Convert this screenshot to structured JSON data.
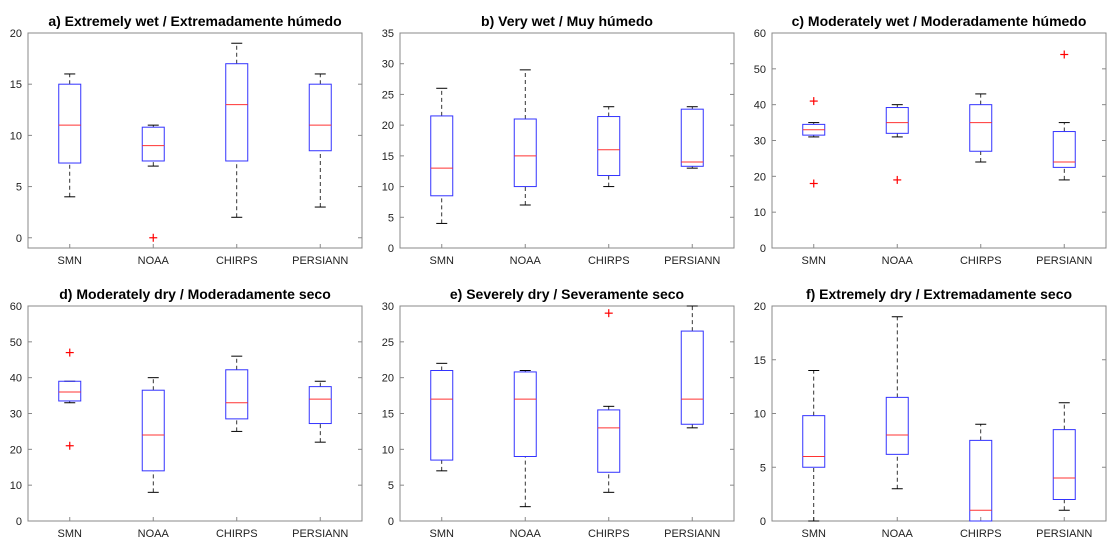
{
  "colors": {
    "box": "#3333ff",
    "median": "#ff3333",
    "whisker": "#000000",
    "outlier": "#ff0000",
    "axes": "#888888"
  },
  "chart_data": [
    {
      "type": "box",
      "title": "a) Extremely wet / Extremadamente húmedo",
      "categories": [
        "SMN",
        "NOAA",
        "CHIRPS",
        "PERSIANN"
      ],
      "ylim": [
        -1,
        20
      ],
      "yticks": [
        0,
        5,
        10,
        15,
        20
      ],
      "boxes": [
        {
          "whisker_low": 4,
          "q1": 7.3,
          "median": 11,
          "q3": 15,
          "whisker_high": 16,
          "outliers": []
        },
        {
          "whisker_low": 7,
          "q1": 7.5,
          "median": 9,
          "q3": 10.8,
          "whisker_high": 11,
          "outliers": [
            0
          ]
        },
        {
          "whisker_low": 2,
          "q1": 7.5,
          "median": 13,
          "q3": 17,
          "whisker_high": 19,
          "outliers": []
        },
        {
          "whisker_low": 3,
          "q1": 8.5,
          "median": 11,
          "q3": 15,
          "whisker_high": 16,
          "outliers": []
        }
      ]
    },
    {
      "type": "box",
      "title": "b) Very wet / Muy húmedo",
      "categories": [
        "SMN",
        "NOAA",
        "CHIRPS",
        "PERSIANN"
      ],
      "ylim": [
        0,
        35
      ],
      "yticks": [
        0,
        5,
        10,
        15,
        20,
        25,
        30,
        35
      ],
      "boxes": [
        {
          "whisker_low": 4,
          "q1": 8.5,
          "median": 13,
          "q3": 21.5,
          "whisker_high": 26,
          "outliers": []
        },
        {
          "whisker_low": 7,
          "q1": 10,
          "median": 15,
          "q3": 21,
          "whisker_high": 29,
          "outliers": []
        },
        {
          "whisker_low": 10,
          "q1": 11.8,
          "median": 16,
          "q3": 21.4,
          "whisker_high": 23,
          "outliers": []
        },
        {
          "whisker_low": 13,
          "q1": 13.3,
          "median": 14,
          "q3": 22.6,
          "whisker_high": 23,
          "outliers": []
        }
      ]
    },
    {
      "type": "box",
      "title": "c) Moderately wet / Moderadamente húmedo",
      "categories": [
        "SMN",
        "NOAA",
        "CHIRPS",
        "PERSIANN"
      ],
      "ylim": [
        0,
        60
      ],
      "yticks": [
        0,
        10,
        20,
        30,
        40,
        50,
        60
      ],
      "boxes": [
        {
          "whisker_low": 31,
          "q1": 31.5,
          "median": 33,
          "q3": 34.5,
          "whisker_high": 35,
          "outliers": [
            18,
            41
          ]
        },
        {
          "whisker_low": 31,
          "q1": 32,
          "median": 35,
          "q3": 39.2,
          "whisker_high": 40,
          "outliers": [
            19
          ]
        },
        {
          "whisker_low": 24,
          "q1": 27,
          "median": 35,
          "q3": 40,
          "whisker_high": 43,
          "outliers": []
        },
        {
          "whisker_low": 19,
          "q1": 22.5,
          "median": 24,
          "q3": 32.5,
          "whisker_high": 35,
          "outliers": [
            54
          ]
        }
      ]
    },
    {
      "type": "box",
      "title": "d) Moderately dry / Moderadamente seco",
      "categories": [
        "SMN",
        "NOAA",
        "CHIRPS",
        "PERSIANN"
      ],
      "ylim": [
        0,
        60
      ],
      "yticks": [
        0,
        10,
        20,
        30,
        40,
        50,
        60
      ],
      "boxes": [
        {
          "whisker_low": 33,
          "q1": 33.5,
          "median": 36,
          "q3": 39,
          "whisker_high": 39,
          "outliers": [
            21,
            47
          ]
        },
        {
          "whisker_low": 8,
          "q1": 14,
          "median": 24,
          "q3": 36.5,
          "whisker_high": 40,
          "outliers": []
        },
        {
          "whisker_low": 25,
          "q1": 28.5,
          "median": 33,
          "q3": 42.2,
          "whisker_high": 46,
          "outliers": []
        },
        {
          "whisker_low": 22,
          "q1": 27.2,
          "median": 34,
          "q3": 37.5,
          "whisker_high": 39,
          "outliers": []
        }
      ]
    },
    {
      "type": "box",
      "title": "e) Severely dry / Severamente seco",
      "categories": [
        "SMN",
        "NOAA",
        "CHIRPS",
        "PERSIANN"
      ],
      "ylim": [
        0,
        30
      ],
      "yticks": [
        0,
        5,
        10,
        15,
        20,
        25,
        30
      ],
      "boxes": [
        {
          "whisker_low": 7,
          "q1": 8.5,
          "median": 17,
          "q3": 21,
          "whisker_high": 22,
          "outliers": []
        },
        {
          "whisker_low": 2,
          "q1": 9,
          "median": 17,
          "q3": 20.8,
          "whisker_high": 21,
          "outliers": []
        },
        {
          "whisker_low": 4,
          "q1": 6.8,
          "median": 13,
          "q3": 15.5,
          "whisker_high": 16,
          "outliers": [
            29
          ]
        },
        {
          "whisker_low": 13,
          "q1": 13.5,
          "median": 17,
          "q3": 26.5,
          "whisker_high": 30,
          "outliers": []
        }
      ]
    },
    {
      "type": "box",
      "title": "f) Extremely dry / Extremadamente seco",
      "categories": [
        "SMN",
        "NOAA",
        "CHIRPS",
        "PERSIANN"
      ],
      "ylim": [
        0,
        20
      ],
      "yticks": [
        0,
        5,
        10,
        15,
        20
      ],
      "boxes": [
        {
          "whisker_low": 0,
          "q1": 5,
          "median": 6,
          "q3": 9.8,
          "whisker_high": 14,
          "outliers": []
        },
        {
          "whisker_low": 3,
          "q1": 6.2,
          "median": 8,
          "q3": 11.5,
          "whisker_high": 19,
          "outliers": []
        },
        {
          "whisker_low": 0,
          "q1": 0,
          "median": 1,
          "q3": 7.5,
          "whisker_high": 9,
          "outliers": []
        },
        {
          "whisker_low": 1,
          "q1": 2,
          "median": 4,
          "q3": 8.5,
          "whisker_high": 11,
          "outliers": []
        }
      ]
    }
  ]
}
